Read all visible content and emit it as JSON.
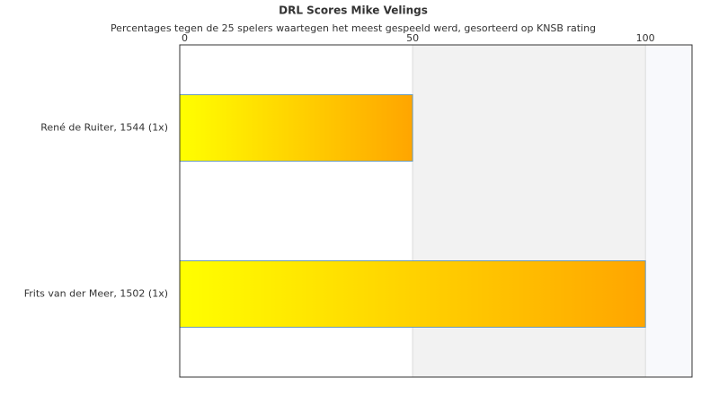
{
  "chart_data": {
    "type": "bar",
    "orientation": "horizontal",
    "title": "DRL Scores Mike Velings",
    "subtitle": "Percentages tegen de 25 spelers waartegen het meest gespeeld werd, gesorteerd op KNSB rating",
    "categories": [
      "René de Ruiter, 1544 (1x)",
      "Frits van der Meer, 1502 (1x)"
    ],
    "values": [
      50,
      100
    ],
    "gradient": [
      "#ffff00",
      "#ffa500"
    ],
    "xlim": [
      0,
      110
    ],
    "xticks": [
      0,
      50,
      100
    ],
    "grid": true
  }
}
